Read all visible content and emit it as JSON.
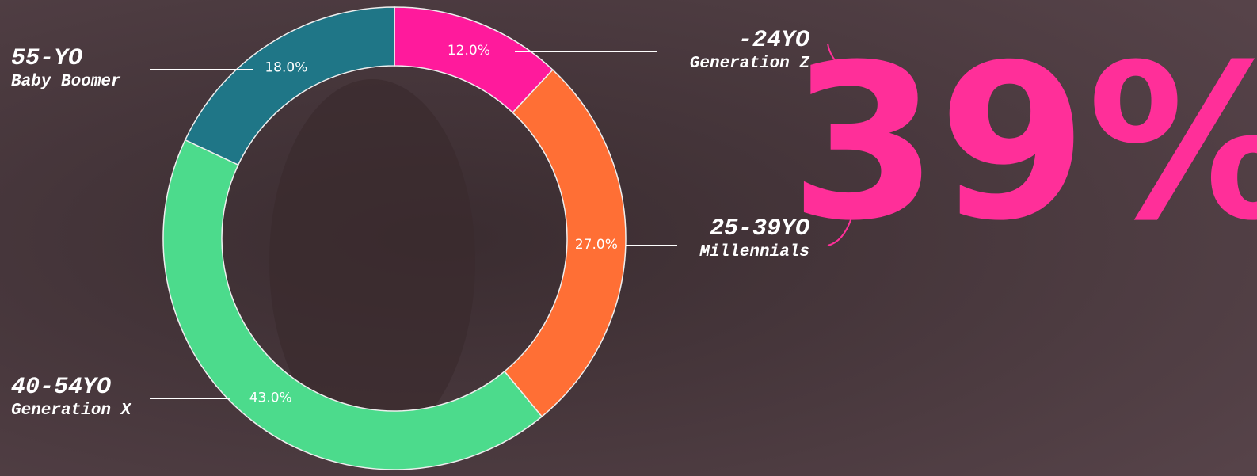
{
  "chart_data": {
    "type": "donut",
    "categories": [
      "-24YO",
      "25-39YO",
      "40-54YO",
      "55-YO"
    ],
    "category_descriptions": [
      "Generation Z",
      "Millennials",
      "Generation X",
      "Baby Boomer"
    ],
    "values": [
      12,
      27,
      43,
      18
    ],
    "value_labels": [
      "12.0%",
      "27.0%",
      "43.0%",
      "18.0%"
    ],
    "colors": [
      "#ff1a9c",
      "#ff6f35",
      "#4cdb8c",
      "#1f7687"
    ],
    "highlight": "39%",
    "highlight_color": "#ff2f99"
  }
}
